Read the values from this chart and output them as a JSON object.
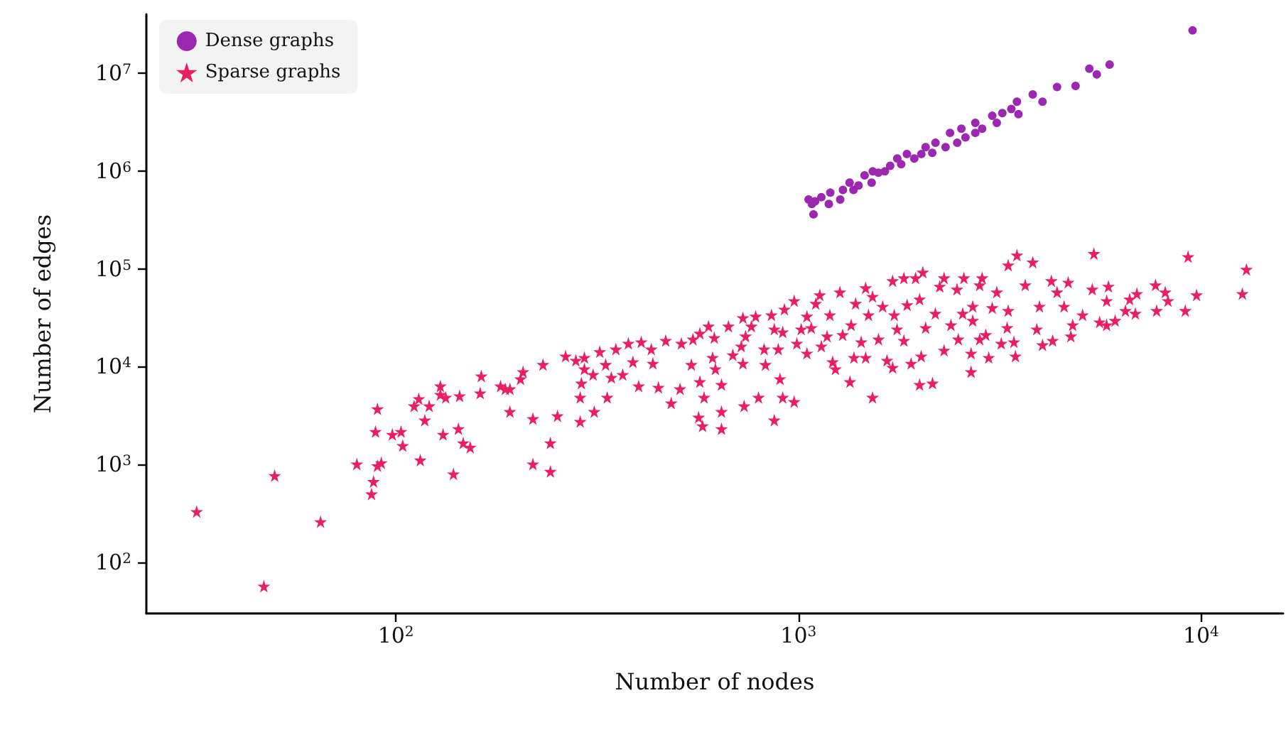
{
  "chart_data": {
    "type": "scatter",
    "xlabel": "Number of nodes",
    "ylabel": "Number of edges",
    "log": "xy",
    "grid": false,
    "legend": "top left",
    "xlim": [
      24,
      16000
    ],
    "ylim": [
      30,
      40000000
    ],
    "xticks": [
      {
        "value": 100,
        "label": "10$^{2}$"
      },
      {
        "value": 1000,
        "label": "10$^{3}$"
      },
      {
        "value": 10000,
        "label": "10$^{4}$"
      }
    ],
    "yticks": [
      {
        "value": 100,
        "label": "10$^{2}$"
      },
      {
        "value": 1000,
        "label": "10$^{3}$"
      },
      {
        "value": 10000,
        "label": "10$^{4}$"
      },
      {
        "value": 100000,
        "label": "10$^{5}$"
      },
      {
        "value": 1000000,
        "label": "10$^{6}$"
      },
      {
        "value": 10000000,
        "label": "10$^{7}$"
      }
    ],
    "series": [
      {
        "name": "Dense graphs",
        "color": "#9c27b0",
        "marker": "circle",
        "x": [
          9530,
          5930,
          5510,
          5280,
          4880,
          4390,
          4040,
          3820,
          3490,
          3520,
          3380,
          3210,
          3030,
          3110,
          2860,
          2750,
          2750,
          2600,
          2540,
          2480,
          2380,
          2320,
          2190,
          2150,
          2070,
          2020,
          1940,
          1860,
          1800,
          1760,
          1690,
          1640,
          1580,
          1530,
          1520,
          1460,
          1410,
          1370,
          1340,
          1290,
          1270,
          1200,
          1190,
          1140,
          1100,
          1080,
          1090,
          1060
        ],
        "values": [
          27300000,
          12200000,
          9700000,
          11100000,
          7400000,
          7200000,
          5100000,
          6050000,
          5100000,
          3800000,
          4300000,
          3900000,
          3660000,
          3100000,
          2700000,
          3100000,
          2450000,
          2200000,
          2700000,
          1940000,
          2450000,
          1750000,
          1940000,
          1530000,
          1750000,
          1490000,
          1340000,
          1490000,
          1170000,
          1340000,
          1130000,
          990000,
          960000,
          990000,
          760000,
          900000,
          710000,
          640000,
          760000,
          640000,
          510000,
          600000,
          460000,
          540000,
          490000,
          460000,
          360000,
          510000
        ]
      },
      {
        "name": "Sparse graphs",
        "color": "#e91e63",
        "marker": "star",
        "x": [
          32,
          47,
          50,
          65,
          80,
          87,
          88,
          90,
          92,
          89,
          90,
          98,
          103,
          104,
          111,
          114,
          121,
          118,
          115,
          129,
          129,
          133,
          131,
          139,
          143,
          144,
          147,
          153,
          162,
          163,
          182,
          187,
          192,
          192,
          204,
          207,
          219,
          219,
          232,
          242,
          242,
          252,
          264,
          280,
          294,
          294,
          289,
          287,
          287,
          311,
          309,
          321,
          332,
          335,
          343,
          352,
          366,
          378,
          388,
          401,
          407,
          431,
          435,
          449,
          468,
          483,
          508,
          512,
          542,
          547,
          569,
          569,
          565,
          578,
          583,
          598,
          612,
          618,
          622,
          644,
          644,
          644,
          670,
          687,
          721,
          728,
          739,
          728,
          733,
          764,
          783,
          796,
          828,
          822,
          857,
          871,
          871,
          891,
          900,
          914,
          914,
          923,
          976,
          976,
          991,
          1016,
          1050,
          1050,
          1076,
          1130,
          1104,
          1140,
          1178,
          1197,
          1216,
          1236,
          1268,
          1288,
          1343,
          1352,
          1374,
          1387,
          1432,
          1469,
          1469,
          1493,
          1528,
          1528,
          1581,
          1619,
          1660,
          1714,
          1730,
          1758,
          1714,
          1828,
          1828,
          1862,
          1905,
          1954,
          2000,
          2018,
          2000,
          2037,
          2070,
          2153,
          2188,
          2244,
          2300,
          2300,
          2393,
          2477,
          2495,
          2559,
          2577,
          2685,
          2685,
          2710,
          2820,
          2820,
          3490,
          3320,
          3820,
          5420,
          9290,
          12970,
          12670,
          9750,
          9140,
          8280,
          8150,
          7710,
          7760,
          6930,
          6650,
          6490,
          6120,
          5830,
          5600,
          5890,
          5370,
          5080,
          4800,
          4750,
          4280,
          4040,
          3910,
          3970,
          4390,
          4570,
          4680,
          4250,
          3660,
          3460,
          3430,
          3300,
          3190,
          2970,
          2920,
          2710,
          3320,
          3030,
          2860,
          3110,
          5830,
          6870
        ],
        "values": [
          330,
          57,
          770,
          260,
          1010,
          500,
          670,
          970,
          1040,
          2170,
          3700,
          2030,
          2170,
          1560,
          3970,
          4700,
          3970,
          2840,
          1110,
          6340,
          5190,
          4850,
          2030,
          800,
          2320,
          5020,
          1660,
          1500,
          5370,
          8020,
          6340,
          5930,
          5930,
          3470,
          7500,
          8870,
          2940,
          1010,
          10500,
          850,
          1660,
          3140,
          12800,
          11600,
          12400,
          9480,
          6780,
          4850,
          2750,
          3470,
          8300,
          14200,
          10500,
          4850,
          7760,
          15100,
          8300,
          17300,
          11200,
          6340,
          17900,
          15100,
          10800,
          6140,
          18500,
          4250,
          5930,
          17300,
          10500,
          19100,
          7010,
          21900,
          3040,
          2480,
          4850,
          25900,
          12400,
          19800,
          9480,
          6560,
          3470,
          2320,
          25900,
          13200,
          16200,
          31600,
          20500,
          10800,
          3970,
          25900,
          32700,
          4850,
          10500,
          15100,
          33800,
          24200,
          2840,
          15100,
          7500,
          22600,
          4850,
          38600,
          4390,
          47200,
          17300,
          24200,
          13700,
          32700,
          25000,
          54000,
          44200,
          16200,
          20500,
          33800,
          11200,
          9480,
          57800,
          21200,
          7010,
          26700,
          12400,
          44200,
          17900,
          63800,
          12400,
          33800,
          4850,
          52200,
          19100,
          41300,
          11600,
          75500,
          33800,
          24200,
          9800,
          80700,
          18500,
          42800,
          10800,
          80700,
          48900,
          12800,
          6560,
          92300,
          25000,
          6780,
          35000,
          66100,
          80700,
          14700,
          26700,
          61800,
          19100,
          35000,
          80700,
          13700,
          8870,
          41300,
          68300,
          19100,
          138000,
          109000,
          117000,
          143000,
          133000,
          98600,
          55800,
          54000,
          37400,
          47200,
          57800,
          68300,
          37400,
          55800,
          48900,
          37400,
          29600,
          26700,
          28600,
          66100,
          61800,
          33800,
          26700,
          20500,
          18500,
          16700,
          24200,
          41300,
          57800,
          41300,
          72900,
          75500,
          68300,
          12800,
          17900,
          25000,
          17300,
          12400,
          21200,
          29600,
          37400,
          40000,
          80700,
          57800,
          47200,
          35000
        ]
      }
    ]
  }
}
